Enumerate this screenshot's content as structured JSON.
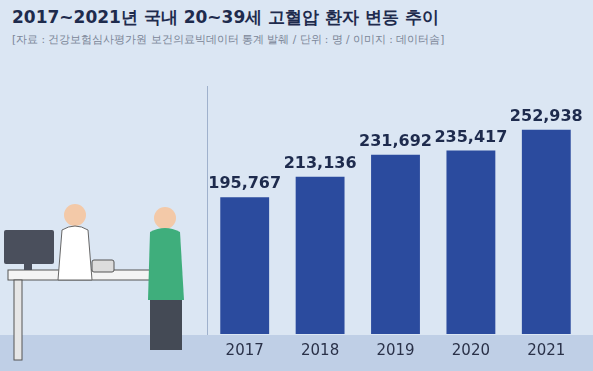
{
  "chart_data": {
    "type": "bar",
    "title": "2017~2021년 국내 20~39세 고혈압 환자 변동 추이",
    "subtitle": "[자료 : 건강보험심사평가원 보건의료빅데이터 통계 발췌 / 단위 : 명 / 이미지 : 데이터솜]",
    "categories": [
      "2017",
      "2018",
      "2019",
      "2020",
      "2021"
    ],
    "values": [
      195767,
      213136,
      231692,
      235417,
      252938
    ],
    "value_labels": [
      "195,767",
      "213,136",
      "231,692",
      "235,417",
      "252,938"
    ],
    "color": "#2b4b9e",
    "ylim": [
      80000,
      290000
    ],
    "yticks": [
      80000,
      290000
    ],
    "grid": false,
    "data_labels": true,
    "tick_labels": "x"
  }
}
